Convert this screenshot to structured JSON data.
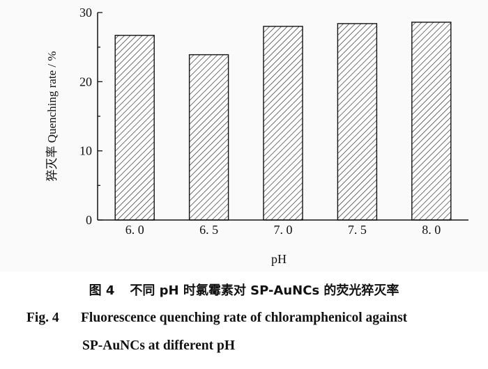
{
  "chart_data": {
    "type": "bar",
    "categories": [
      "6. 0",
      "6. 5",
      "7. 0",
      "7. 5",
      "8. 0"
    ],
    "values": [
      26.7,
      23.9,
      28.0,
      28.4,
      28.6
    ],
    "ylim": [
      0,
      30
    ],
    "yticks": [
      "0",
      "10",
      "20",
      "30"
    ],
    "xlabel": "pH",
    "ylabel": "猝灭率 Quenching rate / %",
    "grid": false,
    "bar_fill": "hatched"
  },
  "caption": {
    "cn_number": "图 4",
    "cn_text": "不同 pH 时氯霉素对 SP-AuNCs 的荧光猝灭率",
    "en_number": "Fig. 4",
    "en_line1": "Fluorescence quenching rate of chloramphenicol against",
    "en_line2": "SP-AuNCs at different pH"
  },
  "colors": {
    "axis": "#111111",
    "bar_stroke": "#111111",
    "hatch": "#222222",
    "panel": "#fafafa"
  }
}
